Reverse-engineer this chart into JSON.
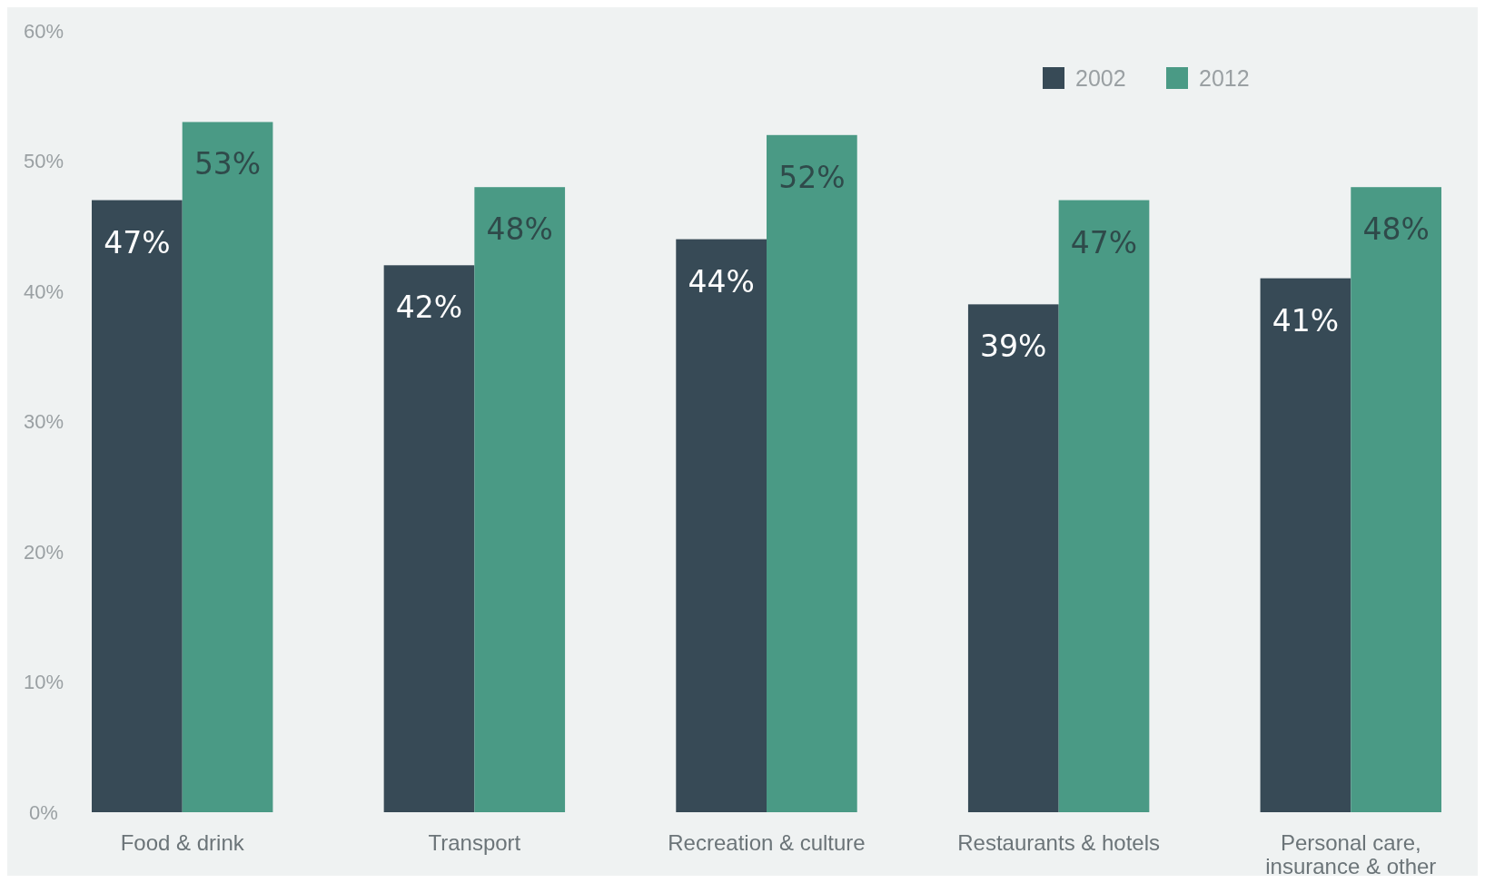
{
  "chart_data": {
    "type": "bar",
    "categories": [
      "Food & drink",
      "Transport",
      "Recreation & culture",
      "Restaurants & hotels",
      "Personal care, insurance & other"
    ],
    "series": [
      {
        "name": "2002",
        "color": "#374a56",
        "values": [
          47,
          42,
          44,
          39,
          41
        ],
        "value_labels": [
          "47%",
          "42%",
          "44%",
          "39%",
          "41%"
        ]
      },
      {
        "name": "2012",
        "color": "#4a9a85",
        "values": [
          53,
          48,
          52,
          47,
          48
        ],
        "value_labels": [
          "53%",
          "48%",
          "52%",
          "47%",
          "48%"
        ]
      }
    ],
    "ylim": [
      0,
      60
    ],
    "yticks": [
      {
        "value": 0,
        "label": "0%"
      },
      {
        "value": 10,
        "label": "10%"
      },
      {
        "value": 20,
        "label": "20%"
      },
      {
        "value": 30,
        "label": "30%"
      },
      {
        "value": 40,
        "label": "40%"
      },
      {
        "value": 50,
        "label": "50%"
      },
      {
        "value": 60,
        "label": "60%"
      }
    ],
    "grid": false,
    "legend": "top right"
  }
}
